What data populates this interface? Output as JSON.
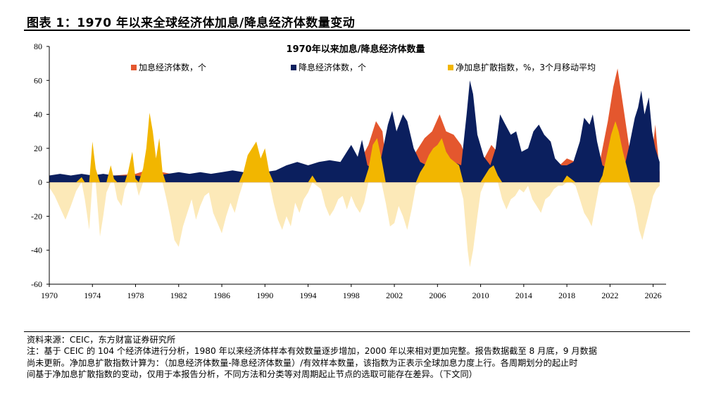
{
  "header": {
    "title": "图表 1：1970 年以来全球经济体加息/降息经济体数量变动"
  },
  "footer": {
    "source": "资料来源：CEIC，东方财富证券研究所",
    "note_lines": [
      "注：基于 CEIC 的 104 个经济体进行分析，1980 年以来经济体样本有效数量逐步增加，2000 年以来相对更加完整。报告数据截至 8 月底，9 月数据",
      "尚未更新。净加息扩散指数计算为：（加息经济体数量-降息经济体数量）/有效样本数量，该指数为正表示全球加息力度上行。各周期划分的起止时",
      "间基于净加息扩散指数的变动，仅用于本报告分析，不同方法和分类等对周期起止节点的选取可能存在差异。（下文同）"
    ]
  },
  "chart_data": {
    "type": "area",
    "title": "1970年以来加息/降息经济体数量",
    "xlabel": "",
    "ylabel": "",
    "ylim": [
      -60,
      80
    ],
    "yticks": [
      -60,
      -40,
      -20,
      0,
      20,
      40,
      60,
      80
    ],
    "xlim": [
      1970,
      2027.2
    ],
    "xticks": [
      1970,
      1974,
      1978,
      1982,
      1986,
      1990,
      1994,
      1998,
      2002,
      2006,
      2010,
      2014,
      2018,
      2022,
      2026
    ],
    "legend_position": "top",
    "grid": false,
    "colors": {
      "hike": "#E4572E",
      "cut": "#0B1F5E",
      "diffusion_pos": "#F2B600",
      "diffusion_neg": "#FCE9B8"
    },
    "series": [
      {
        "name": "加息经济体数，个",
        "key": "hike",
        "points": [
          [
            1970,
            2
          ],
          [
            1972,
            3
          ],
          [
            1974,
            4
          ],
          [
            1976,
            4
          ],
          [
            1978,
            5
          ],
          [
            1979.5,
            8
          ],
          [
            1980.5,
            6
          ],
          [
            1982,
            4
          ],
          [
            1984,
            4
          ],
          [
            1986,
            4
          ],
          [
            1988,
            5
          ],
          [
            1989.5,
            8
          ],
          [
            1991,
            5
          ],
          [
            1993,
            5
          ],
          [
            1995,
            7
          ],
          [
            1997,
            7
          ],
          [
            1998.6,
            10
          ],
          [
            1999.6,
            22
          ],
          [
            2000.3,
            36
          ],
          [
            2000.9,
            30
          ],
          [
            2001.3,
            8
          ],
          [
            2002,
            6
          ],
          [
            2003,
            6
          ],
          [
            2004,
            18
          ],
          [
            2004.8,
            26
          ],
          [
            2005.5,
            30
          ],
          [
            2006.2,
            40
          ],
          [
            2006.8,
            30
          ],
          [
            2007.5,
            28
          ],
          [
            2008.2,
            22
          ],
          [
            2008.8,
            12
          ],
          [
            2009.3,
            3
          ],
          [
            2010,
            10
          ],
          [
            2011,
            22
          ],
          [
            2011.8,
            16
          ],
          [
            2012.5,
            8
          ],
          [
            2013.5,
            8
          ],
          [
            2014.3,
            10
          ],
          [
            2015,
            9
          ],
          [
            2016,
            7
          ],
          [
            2017,
            8
          ],
          [
            2018,
            14
          ],
          [
            2018.8,
            12
          ],
          [
            2019.5,
            6
          ],
          [
            2020.3,
            3
          ],
          [
            2021,
            10
          ],
          [
            2021.8,
            36
          ],
          [
            2022.3,
            56
          ],
          [
            2022.7,
            67
          ],
          [
            2023.2,
            46
          ],
          [
            2023.8,
            20
          ],
          [
            2024.3,
            8
          ],
          [
            2025,
            6
          ],
          [
            2025.8,
            10
          ],
          [
            2026.2,
            34
          ],
          [
            2026.6,
            6
          ]
        ]
      },
      {
        "name": "降息经济体数，个",
        "key": "cut",
        "points": [
          [
            1970,
            4
          ],
          [
            1971,
            5
          ],
          [
            1972,
            4
          ],
          [
            1973,
            5
          ],
          [
            1974,
            4
          ],
          [
            1975,
            5
          ],
          [
            1976,
            4
          ],
          [
            1977,
            4
          ],
          [
            1978,
            4
          ],
          [
            1979,
            3
          ],
          [
            1980,
            4
          ],
          [
            1981,
            5
          ],
          [
            1982,
            6
          ],
          [
            1983,
            5
          ],
          [
            1984,
            6
          ],
          [
            1985,
            5
          ],
          [
            1986,
            6
          ],
          [
            1987,
            7
          ],
          [
            1988,
            6
          ],
          [
            1989,
            5
          ],
          [
            1990,
            6
          ],
          [
            1991,
            7
          ],
          [
            1992,
            10
          ],
          [
            1993,
            12
          ],
          [
            1994,
            10
          ],
          [
            1995,
            12
          ],
          [
            1996,
            13
          ],
          [
            1997,
            12
          ],
          [
            1998,
            22
          ],
          [
            1998.6,
            15
          ],
          [
            1999,
            25
          ],
          [
            1999.5,
            10
          ],
          [
            2000,
            8
          ],
          [
            2000.7,
            12
          ],
          [
            2001.4,
            34
          ],
          [
            2001.8,
            42
          ],
          [
            2002.2,
            30
          ],
          [
            2002.8,
            40
          ],
          [
            2003.2,
            36
          ],
          [
            2003.8,
            20
          ],
          [
            2004.4,
            12
          ],
          [
            2005,
            10
          ],
          [
            2005.6,
            14
          ],
          [
            2006.3,
            8
          ],
          [
            2006.9,
            10
          ],
          [
            2007.5,
            12
          ],
          [
            2008.2,
            10
          ],
          [
            2008.7,
            40
          ],
          [
            2009,
            60
          ],
          [
            2009.3,
            52
          ],
          [
            2009.7,
            28
          ],
          [
            2010.3,
            15
          ],
          [
            2010.9,
            10
          ],
          [
            2011.4,
            20
          ],
          [
            2011.8,
            40
          ],
          [
            2012.3,
            34
          ],
          [
            2012.8,
            28
          ],
          [
            2013.3,
            30
          ],
          [
            2013.8,
            18
          ],
          [
            2014.4,
            20
          ],
          [
            2014.9,
            30
          ],
          [
            2015.4,
            34
          ],
          [
            2015.9,
            28
          ],
          [
            2016.5,
            24
          ],
          [
            2016.9,
            14
          ],
          [
            2017.5,
            10
          ],
          [
            2018,
            10
          ],
          [
            2018.6,
            12
          ],
          [
            2019.2,
            24
          ],
          [
            2019.6,
            38
          ],
          [
            2020.1,
            34
          ],
          [
            2020.4,
            40
          ],
          [
            2020.8,
            24
          ],
          [
            2021.3,
            10
          ],
          [
            2021.8,
            8
          ],
          [
            2022.5,
            6
          ],
          [
            2023.3,
            8
          ],
          [
            2023.8,
            22
          ],
          [
            2024.3,
            38
          ],
          [
            2024.6,
            44
          ],
          [
            2024.9,
            54
          ],
          [
            2025.2,
            40
          ],
          [
            2025.6,
            50
          ],
          [
            2025.9,
            30
          ],
          [
            2026.2,
            20
          ],
          [
            2026.6,
            12
          ]
        ]
      },
      {
        "name": "净加息扩散指数，%，3个月移动平均",
        "key": "diffusion",
        "points": [
          [
            1970,
            -3
          ],
          [
            1970.5,
            -8
          ],
          [
            1971,
            -15
          ],
          [
            1971.5,
            -22
          ],
          [
            1972,
            -14
          ],
          [
            1972.5,
            -5
          ],
          [
            1973,
            3
          ],
          [
            1973.3,
            -10
          ],
          [
            1973.7,
            -28
          ],
          [
            1974,
            24
          ],
          [
            1974.3,
            8
          ],
          [
            1974.7,
            -32
          ],
          [
            1975,
            -20
          ],
          [
            1975.3,
            -6
          ],
          [
            1975.7,
            10
          ],
          [
            1976,
            2
          ],
          [
            1976.3,
            -10
          ],
          [
            1976.7,
            -14
          ],
          [
            1977,
            -4
          ],
          [
            1977.3,
            6
          ],
          [
            1977.7,
            18
          ],
          [
            1978,
            2
          ],
          [
            1978.3,
            -8
          ],
          [
            1978.7,
            8
          ],
          [
            1979,
            20
          ],
          [
            1979.3,
            41
          ],
          [
            1979.6,
            30
          ],
          [
            1979.9,
            14
          ],
          [
            1980.2,
            26
          ],
          [
            1980.5,
            6
          ],
          [
            1980.8,
            -8
          ],
          [
            1981.2,
            -20
          ],
          [
            1981.6,
            -34
          ],
          [
            1982,
            -38
          ],
          [
            1982.4,
            -26
          ],
          [
            1982.8,
            -18
          ],
          [
            1983.2,
            -10
          ],
          [
            1983.6,
            -22
          ],
          [
            1984,
            -14
          ],
          [
            1984.4,
            -8
          ],
          [
            1984.8,
            -6
          ],
          [
            1985.2,
            -18
          ],
          [
            1985.6,
            -24
          ],
          [
            1986,
            -30
          ],
          [
            1986.4,
            -20
          ],
          [
            1986.8,
            -12
          ],
          [
            1987.2,
            -18
          ],
          [
            1987.6,
            -8
          ],
          [
            1988,
            6
          ],
          [
            1988.4,
            16
          ],
          [
            1988.8,
            20
          ],
          [
            1989.2,
            24
          ],
          [
            1989.6,
            14
          ],
          [
            1990,
            20
          ],
          [
            1990.4,
            6
          ],
          [
            1990.8,
            -12
          ],
          [
            1991.2,
            -22
          ],
          [
            1991.6,
            -28
          ],
          [
            1992,
            -20
          ],
          [
            1992.4,
            -26
          ],
          [
            1992.8,
            -12
          ],
          [
            1993.2,
            -18
          ],
          [
            1993.6,
            -10
          ],
          [
            1994,
            -6
          ],
          [
            1994.4,
            4
          ],
          [
            1994.8,
            -2
          ],
          [
            1995.2,
            -4
          ],
          [
            1995.6,
            -14
          ],
          [
            1996,
            -20
          ],
          [
            1996.4,
            -16
          ],
          [
            1996.8,
            -10
          ],
          [
            1997.2,
            -8
          ],
          [
            1997.6,
            -16
          ],
          [
            1998,
            -8
          ],
          [
            1998.4,
            -14
          ],
          [
            1998.8,
            -18
          ],
          [
            1999.2,
            -12
          ],
          [
            1999.6,
            8
          ],
          [
            2000,
            22
          ],
          [
            2000.4,
            26
          ],
          [
            2000.8,
            14
          ],
          [
            2001.2,
            -12
          ],
          [
            2001.6,
            -26
          ],
          [
            2002,
            -24
          ],
          [
            2002.4,
            -14
          ],
          [
            2002.8,
            -20
          ],
          [
            2003.2,
            -28
          ],
          [
            2003.6,
            -16
          ],
          [
            2004,
            -2
          ],
          [
            2004.4,
            6
          ],
          [
            2004.8,
            10
          ],
          [
            2005.2,
            16
          ],
          [
            2005.6,
            20
          ],
          [
            2006,
            22
          ],
          [
            2006.4,
            26
          ],
          [
            2006.8,
            18
          ],
          [
            2007.2,
            14
          ],
          [
            2007.6,
            12
          ],
          [
            2008,
            10
          ],
          [
            2008.4,
            -10
          ],
          [
            2008.8,
            -40
          ],
          [
            2009,
            -50
          ],
          [
            2009.3,
            -40
          ],
          [
            2009.7,
            -20
          ],
          [
            2010,
            -6
          ],
          [
            2010.4,
            4
          ],
          [
            2010.8,
            8
          ],
          [
            2011.2,
            10
          ],
          [
            2011.6,
            4
          ],
          [
            2012,
            -10
          ],
          [
            2012.4,
            -16
          ],
          [
            2012.8,
            -10
          ],
          [
            2013.2,
            -8
          ],
          [
            2013.6,
            -4
          ],
          [
            2014,
            -6
          ],
          [
            2014.4,
            -2
          ],
          [
            2014.8,
            -10
          ],
          [
            2015.2,
            -14
          ],
          [
            2015.6,
            -18
          ],
          [
            2016,
            -10
          ],
          [
            2016.4,
            -8
          ],
          [
            2016.8,
            -4
          ],
          [
            2017.2,
            -2
          ],
          [
            2017.6,
            -2
          ],
          [
            2018,
            4
          ],
          [
            2018.4,
            2
          ],
          [
            2018.8,
            -2
          ],
          [
            2019.2,
            -10
          ],
          [
            2019.6,
            -18
          ],
          [
            2020,
            -22
          ],
          [
            2020.3,
            -26
          ],
          [
            2020.7,
            -12
          ],
          [
            2021,
            -2
          ],
          [
            2021.3,
            4
          ],
          [
            2021.7,
            16
          ],
          [
            2022.1,
            28
          ],
          [
            2022.5,
            36
          ],
          [
            2022.8,
            30
          ],
          [
            2023.2,
            18
          ],
          [
            2023.6,
            8
          ],
          [
            2023.9,
            -4
          ],
          [
            2024.3,
            -14
          ],
          [
            2024.7,
            -28
          ],
          [
            2025,
            -34
          ],
          [
            2025.3,
            -26
          ],
          [
            2025.7,
            -16
          ],
          [
            2026,
            -8
          ],
          [
            2026.3,
            -4
          ],
          [
            2026.6,
            -2
          ]
        ]
      }
    ]
  }
}
